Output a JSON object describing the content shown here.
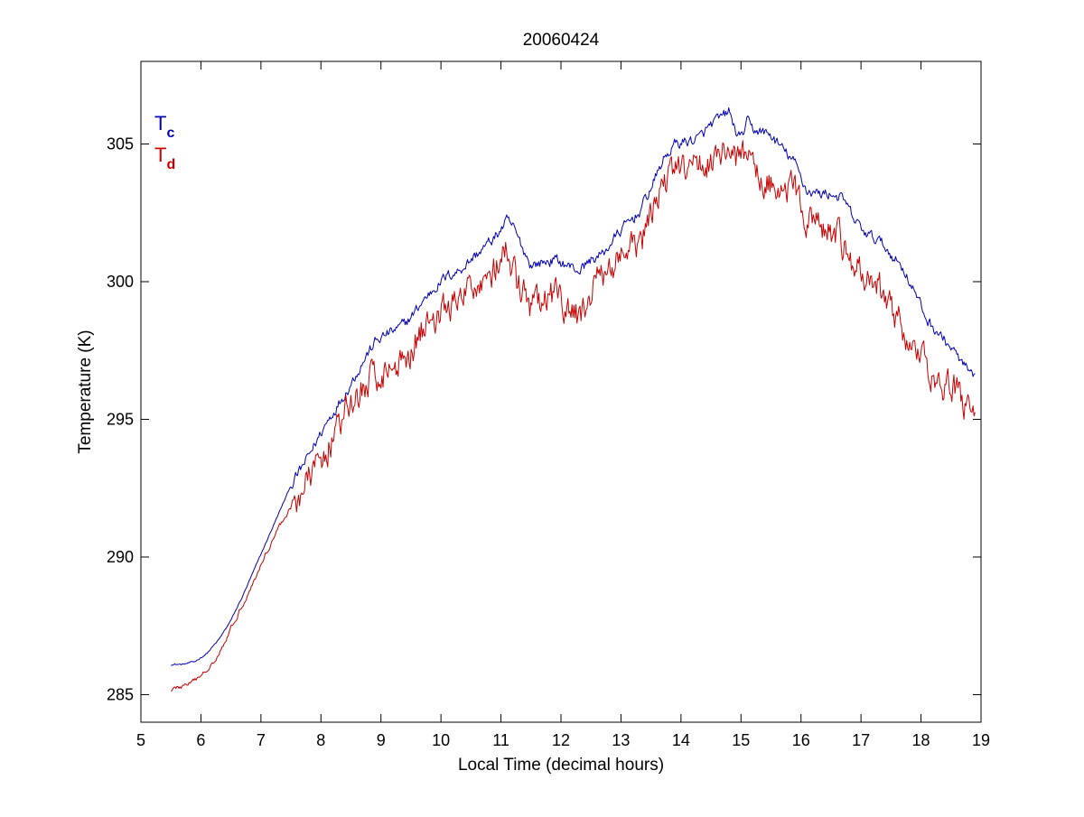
{
  "chart_data": {
    "type": "line",
    "title": "20060424",
    "xlabel": "Local Time (decimal hours)",
    "ylabel": "Temperature (K)",
    "xlim": [
      5,
      19
    ],
    "ylim": [
      284,
      308
    ],
    "xticks": [
      5,
      6,
      7,
      8,
      9,
      10,
      11,
      12,
      13,
      14,
      15,
      16,
      17,
      18,
      19
    ],
    "yticks": [
      285,
      290,
      295,
      300,
      305
    ],
    "grid": false,
    "legend": {
      "placement": "top-left",
      "entries": [
        {
          "main": "T",
          "sub": "c",
          "color": "#0000b4"
        },
        {
          "main": "T",
          "sub": "d",
          "color": "#c80000"
        }
      ]
    },
    "series": [
      {
        "color": "#0000b4",
        "noise": 0.15,
        "x": [
          5.5,
          5.7,
          5.9,
          6.1,
          6.3,
          6.5,
          6.7,
          6.9,
          7.1,
          7.3,
          7.5,
          7.7,
          7.9,
          8.1,
          8.3,
          8.5,
          8.7,
          8.9,
          9.1,
          9.3,
          9.5,
          9.7,
          9.9,
          10.1,
          10.3,
          10.5,
          10.7,
          10.9,
          11.1,
          11.2,
          11.3,
          11.5,
          11.7,
          11.9,
          12.1,
          12.3,
          12.5,
          12.7,
          12.9,
          13.1,
          13.3,
          13.5,
          13.7,
          13.9,
          14.1,
          14.3,
          14.5,
          14.7,
          14.8,
          14.9,
          15.0,
          15.1,
          15.2,
          15.3,
          15.5,
          15.7,
          15.9,
          16.1,
          16.3,
          16.5,
          16.7,
          16.9,
          17.1,
          17.3,
          17.5,
          17.7,
          17.9,
          18.1,
          18.3,
          18.5,
          18.7,
          18.9
        ],
        "values": [
          286.1,
          286.1,
          286.2,
          286.5,
          287.0,
          287.7,
          288.6,
          289.6,
          290.6,
          291.6,
          292.6,
          293.3,
          294.1,
          294.9,
          295.6,
          296.3,
          297.1,
          297.8,
          298.1,
          298.3,
          298.7,
          299.3,
          299.8,
          300.2,
          300.4,
          300.8,
          301.2,
          301.6,
          302.2,
          302.0,
          301.5,
          300.6,
          300.7,
          300.8,
          300.6,
          300.4,
          300.8,
          301.0,
          301.6,
          302.1,
          302.5,
          303.4,
          304.4,
          305.0,
          305.1,
          305.2,
          305.7,
          306.0,
          306.2,
          305.5,
          305.2,
          305.8,
          305.5,
          305.5,
          305.3,
          304.8,
          304.3,
          303.3,
          303.2,
          303.2,
          303.0,
          302.2,
          301.7,
          301.5,
          301.0,
          300.5,
          299.6,
          298.6,
          298.1,
          297.6,
          297.0,
          296.4
        ]
      },
      {
        "color": "#c80000",
        "noise": 0.45,
        "x": [
          5.5,
          5.7,
          5.9,
          6.1,
          6.3,
          6.5,
          6.7,
          6.9,
          7.1,
          7.3,
          7.5,
          7.7,
          7.9,
          8.1,
          8.3,
          8.5,
          8.7,
          8.9,
          9.1,
          9.3,
          9.5,
          9.7,
          9.9,
          10.1,
          10.3,
          10.5,
          10.7,
          10.9,
          11.1,
          11.2,
          11.3,
          11.5,
          11.7,
          11.9,
          12.1,
          12.3,
          12.5,
          12.7,
          12.9,
          13.1,
          13.3,
          13.5,
          13.7,
          13.9,
          14.1,
          14.3,
          14.5,
          14.7,
          14.8,
          14.9,
          15.0,
          15.1,
          15.2,
          15.3,
          15.5,
          15.7,
          15.9,
          16.1,
          16.3,
          16.5,
          16.7,
          16.9,
          17.1,
          17.3,
          17.5,
          17.7,
          17.9,
          18.1,
          18.3,
          18.5,
          18.7,
          18.9
        ],
        "values": [
          285.2,
          285.3,
          285.5,
          285.9,
          286.5,
          287.4,
          288.3,
          289.2,
          290.2,
          291.1,
          291.8,
          292.4,
          293.2,
          294.0,
          294.7,
          295.5,
          296.1,
          296.6,
          296.8,
          297.0,
          297.6,
          298.3,
          298.8,
          299.0,
          299.2,
          299.8,
          300.2,
          300.4,
          301.1,
          300.3,
          299.8,
          299.0,
          299.2,
          299.5,
          298.9,
          298.7,
          299.6,
          300.2,
          300.8,
          301.0,
          301.3,
          302.2,
          303.7,
          304.0,
          304.0,
          304.2,
          304.5,
          304.7,
          305.0,
          304.3,
          304.2,
          304.8,
          304.2,
          303.8,
          303.6,
          303.5,
          303.2,
          302.3,
          301.9,
          301.7,
          301.4,
          300.4,
          300.1,
          299.7,
          299.1,
          298.3,
          297.4,
          296.8,
          296.5,
          296.2,
          295.7,
          295.0
        ]
      }
    ]
  }
}
